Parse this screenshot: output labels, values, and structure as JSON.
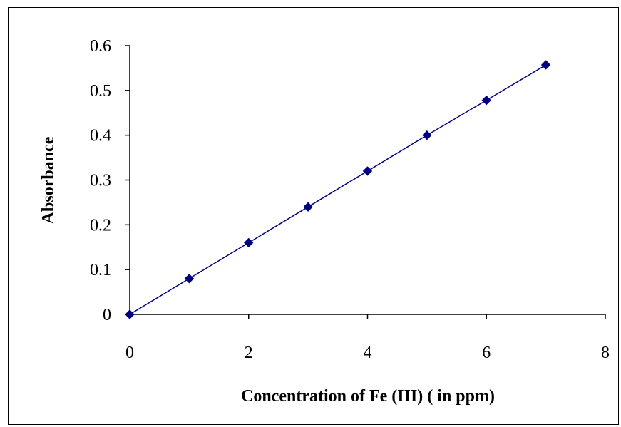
{
  "chart_data": {
    "type": "line",
    "title": "",
    "xlabel": "Concentration of Fe (III) ( in ppm)",
    "ylabel": "Absorbance",
    "xlim": [
      0,
      8
    ],
    "ylim": [
      0,
      0.6
    ],
    "x_ticks": [
      0,
      2,
      4,
      6,
      8
    ],
    "y_ticks": [
      0,
      0.1,
      0.2,
      0.3,
      0.4,
      0.5,
      0.6
    ],
    "x_tick_labels": [
      "0",
      "2",
      "4",
      "6",
      "8"
    ],
    "y_tick_labels": [
      "0",
      "0.1",
      "0.2",
      "0.3",
      "0.4",
      "0.5",
      "0.6"
    ],
    "grid": false,
    "legend": "none",
    "marker": "diamond",
    "series": [
      {
        "x": [
          0,
          1,
          2,
          3,
          4,
          5,
          6,
          7
        ],
        "y": [
          0,
          0.08,
          0.16,
          0.24,
          0.32,
          0.4,
          0.478,
          0.557
        ],
        "color": "#000080"
      }
    ]
  }
}
